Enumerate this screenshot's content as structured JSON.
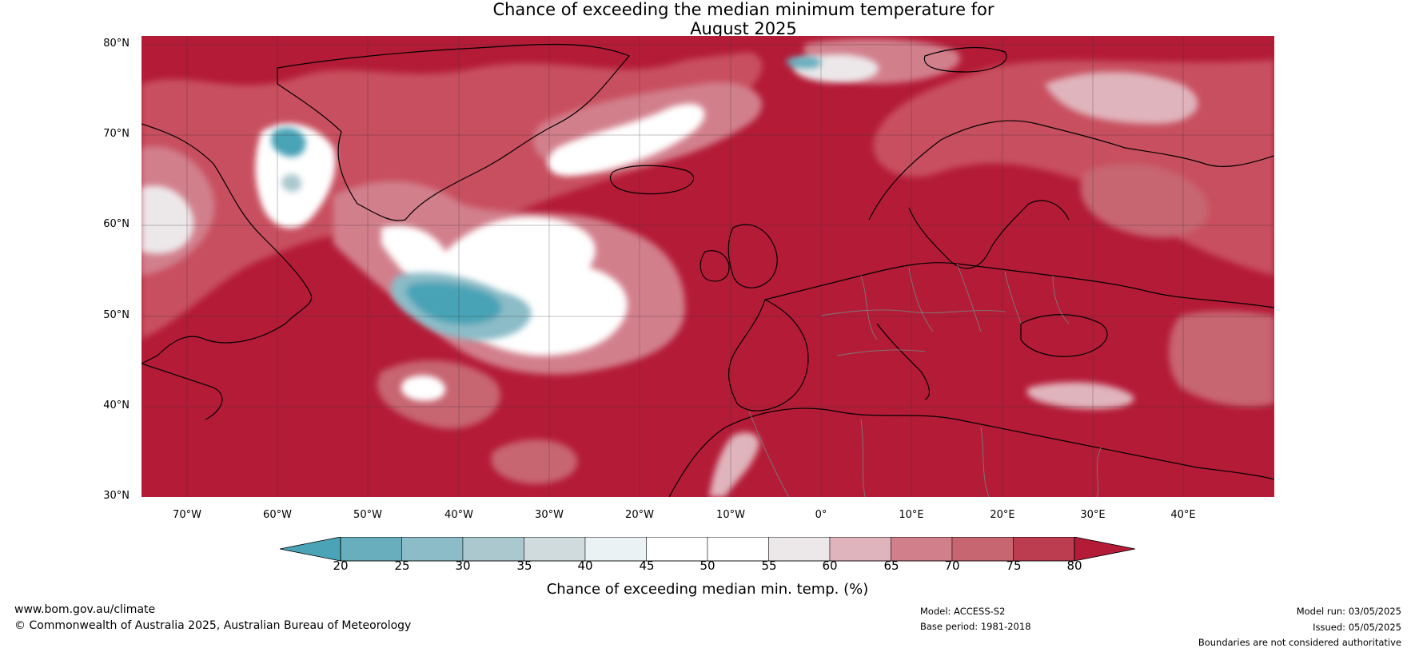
{
  "title": {
    "line1": "Chance of exceeding the median minimum temperature for",
    "line2": "August 2025"
  },
  "map": {
    "lat_ticks": [
      "80°N",
      "70°N",
      "60°N",
      "50°N",
      "40°N",
      "30°N"
    ],
    "lon_ticks": [
      "70°W",
      "60°W",
      "50°W",
      "40°W",
      "30°W",
      "20°W",
      "10°W",
      "0°",
      "10°E",
      "20°E",
      "30°E",
      "40°E"
    ],
    "lat_range": [
      30,
      81
    ],
    "lon_range": [
      -75,
      50
    ]
  },
  "colorbar": {
    "ticks": [
      "20",
      "25",
      "30",
      "35",
      "40",
      "45",
      "50",
      "55",
      "60",
      "65",
      "70",
      "75",
      "80"
    ],
    "colors": [
      "#4aa3b6",
      "#69aebc",
      "#8bbcc7",
      "#abc8cf",
      "#cfdbdd",
      "#eaf2f3",
      "#ffffff",
      "#ffffff",
      "#ece8ea",
      "#e0b4bc",
      "#d27f8c",
      "#c76571",
      "#bd3d50",
      "#b41b37"
    ],
    "title": "Chance of exceeding median min. temp. (%)"
  },
  "footer": {
    "website": "www.bom.gov.au/climate",
    "copyright": "© Commonwealth of Australia 2025, Australian Bureau of Meteorology",
    "model": "Model: ACCESS-S2",
    "base_period": "Base period: 1981-2018",
    "model_run": "Model run: 03/05/2025",
    "issued": "Issued: 05/05/2025",
    "disclaimer": "Boundaries are not considered authoritative"
  }
}
